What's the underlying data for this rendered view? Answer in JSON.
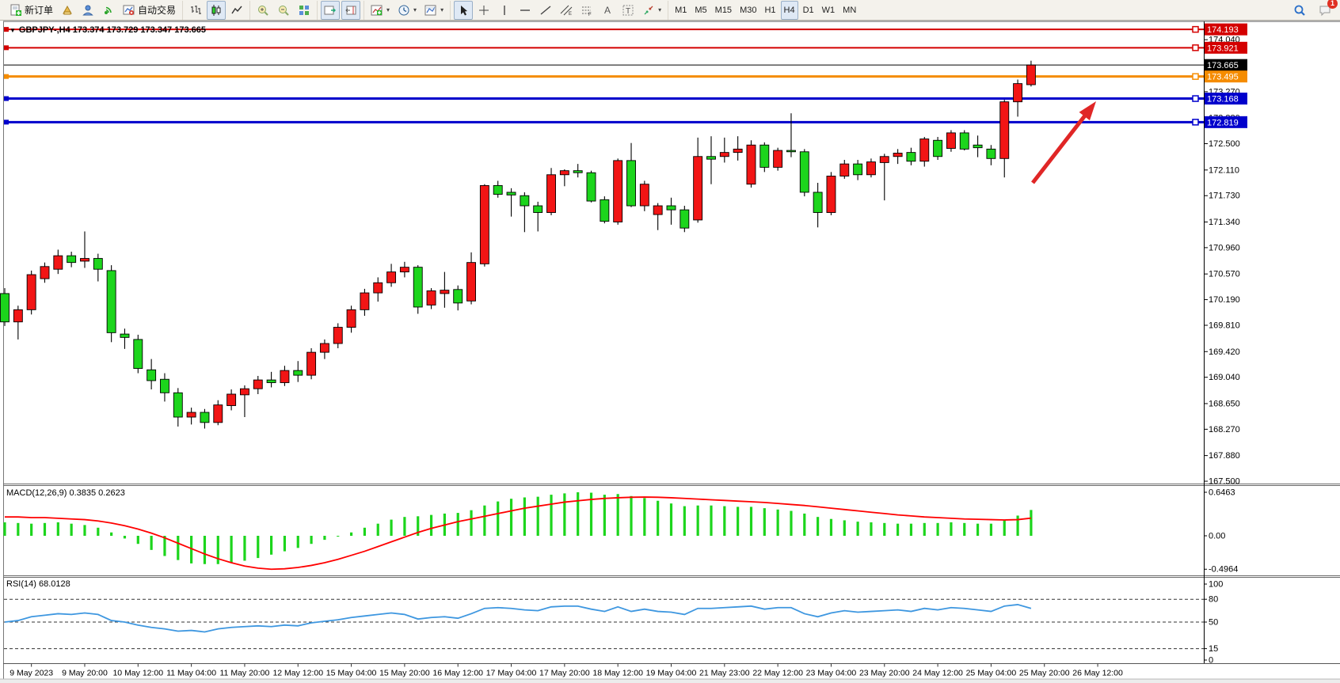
{
  "toolbar": {
    "groups": [
      {
        "items": [
          {
            "name": "new-order",
            "icon": "new-order",
            "label": "新订单",
            "pressed": false,
            "dropdown": false
          },
          {
            "name": "market",
            "icon": "market",
            "label": "",
            "pressed": false,
            "dropdown": false
          },
          {
            "name": "community",
            "icon": "community",
            "label": "",
            "pressed": false,
            "dropdown": false
          },
          {
            "name": "signals",
            "icon": "signals",
            "label": "",
            "pressed": false,
            "dropdown": false
          },
          {
            "name": "autotrading",
            "icon": "autotrading",
            "label": "自动交易",
            "pressed": false,
            "dropdown": false
          }
        ]
      },
      {
        "items": [
          {
            "name": "bar-chart",
            "icon": "bar-chart",
            "label": "",
            "pressed": false,
            "dropdown": false
          },
          {
            "name": "candlesticks",
            "icon": "candles",
            "label": "",
            "pressed": true,
            "dropdown": false
          },
          {
            "name": "line-chart",
            "icon": "line-chart",
            "label": "",
            "pressed": false,
            "dropdown": false
          }
        ]
      },
      {
        "items": [
          {
            "name": "zoom-in",
            "icon": "zoom-in",
            "label": "",
            "pressed": false,
            "dropdown": false
          },
          {
            "name": "zoom-out",
            "icon": "zoom-out",
            "label": "",
            "pressed": false,
            "dropdown": false
          },
          {
            "name": "tile-windows",
            "icon": "tile",
            "label": "",
            "pressed": false,
            "dropdown": false
          }
        ]
      },
      {
        "items": [
          {
            "name": "auto-scroll",
            "icon": "auto-scroll",
            "label": "",
            "pressed": true,
            "dropdown": false
          },
          {
            "name": "chart-shift",
            "icon": "chart-shift",
            "label": "",
            "pressed": true,
            "dropdown": false
          }
        ]
      },
      {
        "items": [
          {
            "name": "indicators",
            "icon": "indicators",
            "label": "",
            "pressed": false,
            "dropdown": true
          },
          {
            "name": "periods",
            "icon": "periods",
            "label": "",
            "pressed": false,
            "dropdown": true
          },
          {
            "name": "templates",
            "icon": "templates",
            "label": "",
            "pressed": false,
            "dropdown": true
          }
        ]
      },
      {
        "items": [
          {
            "name": "cursor",
            "icon": "cursor",
            "label": "",
            "pressed": true,
            "dropdown": false
          },
          {
            "name": "crosshair",
            "icon": "crosshair",
            "label": "",
            "pressed": false,
            "dropdown": false
          },
          {
            "name": "vertical-line",
            "icon": "vline",
            "label": "",
            "pressed": false,
            "dropdown": false
          },
          {
            "name": "horizontal-line",
            "icon": "hline",
            "label": "",
            "pressed": false,
            "dropdown": false
          },
          {
            "name": "trendline",
            "icon": "tline",
            "label": "",
            "pressed": false,
            "dropdown": false
          },
          {
            "name": "equidistant-channel",
            "icon": "channel",
            "label": "",
            "pressed": false,
            "dropdown": false
          },
          {
            "name": "fibonacci",
            "icon": "fibo",
            "label": "",
            "pressed": false,
            "dropdown": false
          },
          {
            "name": "text",
            "icon": "textA",
            "label": "",
            "pressed": false,
            "dropdown": false
          },
          {
            "name": "text-label",
            "icon": "textT",
            "label": "",
            "pressed": false,
            "dropdown": false
          },
          {
            "name": "arrows-tool",
            "icon": "arrows",
            "label": "",
            "pressed": false,
            "dropdown": true
          }
        ]
      },
      {
        "items": [
          {
            "name": "tf-m1",
            "label": "M1",
            "tf": true,
            "pressed": false
          },
          {
            "name": "tf-m5",
            "label": "M5",
            "tf": true,
            "pressed": false
          },
          {
            "name": "tf-m15",
            "label": "M15",
            "tf": true,
            "pressed": false
          },
          {
            "name": "tf-m30",
            "label": "M30",
            "tf": true,
            "pressed": false
          },
          {
            "name": "tf-h1",
            "label": "H1",
            "tf": true,
            "pressed": false
          },
          {
            "name": "tf-h4",
            "label": "H4",
            "tf": true,
            "pressed": true
          },
          {
            "name": "tf-d1",
            "label": "D1",
            "tf": true,
            "pressed": false
          },
          {
            "name": "tf-w1",
            "label": "W1",
            "tf": true,
            "pressed": false
          },
          {
            "name": "tf-mn",
            "label": "MN",
            "tf": true,
            "pressed": false
          }
        ]
      }
    ],
    "notification_count": "1"
  },
  "chart": {
    "title": "GBPJPY-,H4  173.374 173.729 173.347 173.665",
    "symbol": "GBPJPY-",
    "period": "H4",
    "ohlc_line": {
      "open": "173.374",
      "high": "173.729",
      "low": "173.347",
      "close": "173.665"
    }
  },
  "price_axis": {
    "ticks": [
      "174.040",
      "173.650",
      "173.270",
      "172.880",
      "172.500",
      "172.110",
      "171.730",
      "171.340",
      "170.960",
      "170.570",
      "170.190",
      "169.810",
      "169.420",
      "169.040",
      "168.650",
      "168.270",
      "167.880",
      "167.500"
    ],
    "labels": [
      {
        "text": "174.193",
        "color": "#d40000"
      },
      {
        "text": "173.921",
        "color": "#d40000"
      },
      {
        "text": "173.665",
        "color": "#000000"
      },
      {
        "text": "173.495",
        "color": "#f58c00"
      },
      {
        "text": "173.168",
        "color": "#0000cc"
      },
      {
        "text": "172.819",
        "color": "#0000cc"
      }
    ]
  },
  "levels": [
    {
      "value": 174.193,
      "color": "#d40000",
      "width": 2,
      "handles": true
    },
    {
      "value": 173.921,
      "color": "#d40000",
      "width": 2,
      "handles": true
    },
    {
      "value": 173.665,
      "color": "#000000",
      "width": 1,
      "handles": false
    },
    {
      "value": 173.495,
      "color": "#f58c00",
      "width": 3,
      "handles": true
    },
    {
      "value": 173.168,
      "color": "#0000cc",
      "width": 3,
      "handles": true
    },
    {
      "value": 172.819,
      "color": "#0000cc",
      "width": 3,
      "handles": true
    }
  ],
  "time_axis": {
    "labels": [
      "9 May 2023",
      "9 May 20:00",
      "10 May 12:00",
      "11 May 04:00",
      "11 May 20:00",
      "12 May 12:00",
      "15 May 04:00",
      "15 May 20:00",
      "16 May 12:00",
      "17 May 04:00",
      "17 May 20:00",
      "18 May 12:00",
      "19 May 04:00",
      "21 May 23:00",
      "22 May 12:00",
      "23 May 04:00",
      "23 May 20:00",
      "24 May 12:00",
      "25 May 04:00",
      "25 May 20:00",
      "26 May 12:00"
    ]
  },
  "macd": {
    "title": "MACD(12,26,9) 0.3835 0.2623",
    "axis": [
      "0.6463",
      "0.00",
      "-0.4964"
    ],
    "hist_color": "#1cd51c",
    "signal_color": "#ff0000"
  },
  "rsi": {
    "title": "RSI(14) 68.0128",
    "axis": [
      "100",
      "80",
      "50",
      "15",
      "0"
    ],
    "level_lines": [
      80,
      50,
      15
    ],
    "line_color": "#3e97e0"
  },
  "arrow": {
    "from": [
      1304,
      231
    ],
    "to": [
      1384,
      128
    ],
    "color": "#e02626"
  },
  "colors": {
    "bull": "#f21515",
    "bear": "#1cd51c",
    "wick": "#000000",
    "axis_text": "#000000"
  },
  "chart_data": {
    "type": "candlestick",
    "symbol": "GBPJPY",
    "period": "H4",
    "ylim": [
      167.5,
      174.3
    ],
    "note": "red = bullish, green = bearish (CN color convention)",
    "candles": [
      [
        170.28,
        170.36,
        169.8,
        169.86
      ],
      [
        169.86,
        170.1,
        169.6,
        170.04
      ],
      [
        170.04,
        170.62,
        169.97,
        170.56
      ],
      [
        170.5,
        170.74,
        170.44,
        170.68
      ],
      [
        170.64,
        170.93,
        170.57,
        170.84
      ],
      [
        170.84,
        170.9,
        170.67,
        170.74
      ],
      [
        170.76,
        171.2,
        170.66,
        170.8
      ],
      [
        170.8,
        170.87,
        170.46,
        170.64
      ],
      [
        170.62,
        170.7,
        169.56,
        169.7
      ],
      [
        169.68,
        169.76,
        169.46,
        169.63
      ],
      [
        169.6,
        169.67,
        169.1,
        169.17
      ],
      [
        169.15,
        169.31,
        168.86,
        168.99
      ],
      [
        169.01,
        169.1,
        168.68,
        168.81
      ],
      [
        168.81,
        168.88,
        168.31,
        168.45
      ],
      [
        168.45,
        168.59,
        168.34,
        168.52
      ],
      [
        168.52,
        168.57,
        168.28,
        168.37
      ],
      [
        168.37,
        168.7,
        168.33,
        168.63
      ],
      [
        168.62,
        168.86,
        168.55,
        168.79
      ],
      [
        168.78,
        168.92,
        168.45,
        168.87
      ],
      [
        168.87,
        169.06,
        168.79,
        169.0
      ],
      [
        169.0,
        169.12,
        168.89,
        168.96
      ],
      [
        168.96,
        169.21,
        168.91,
        169.14
      ],
      [
        169.14,
        169.28,
        168.97,
        169.07
      ],
      [
        169.07,
        169.47,
        169.01,
        169.41
      ],
      [
        169.41,
        169.6,
        169.31,
        169.54
      ],
      [
        169.54,
        169.84,
        169.47,
        169.78
      ],
      [
        169.78,
        170.1,
        169.7,
        170.04
      ],
      [
        170.04,
        170.35,
        169.95,
        170.29
      ],
      [
        170.29,
        170.52,
        170.16,
        170.44
      ],
      [
        170.44,
        170.72,
        170.38,
        170.6
      ],
      [
        170.6,
        170.75,
        170.52,
        170.67
      ],
      [
        170.67,
        170.7,
        169.98,
        170.08
      ],
      [
        170.11,
        170.36,
        170.05,
        170.32
      ],
      [
        170.28,
        170.6,
        170.07,
        170.33
      ],
      [
        170.34,
        170.4,
        170.03,
        170.14
      ],
      [
        170.17,
        170.89,
        170.12,
        170.74
      ],
      [
        170.72,
        171.9,
        170.68,
        171.88
      ],
      [
        171.88,
        171.95,
        171.7,
        171.75
      ],
      [
        171.78,
        171.84,
        171.42,
        171.74
      ],
      [
        171.73,
        171.78,
        171.19,
        171.58
      ],
      [
        171.58,
        171.64,
        171.2,
        171.48
      ],
      [
        171.48,
        172.14,
        171.44,
        172.04
      ],
      [
        172.04,
        172.12,
        171.87,
        172.1
      ],
      [
        172.1,
        172.2,
        172.0,
        172.07
      ],
      [
        172.07,
        172.1,
        171.63,
        171.65
      ],
      [
        171.67,
        171.72,
        171.32,
        171.35
      ],
      [
        171.34,
        172.28,
        171.3,
        172.25
      ],
      [
        172.25,
        172.51,
        171.56,
        171.58
      ],
      [
        171.58,
        171.95,
        171.5,
        171.9
      ],
      [
        171.45,
        171.62,
        171.22,
        171.58
      ],
      [
        171.58,
        171.7,
        171.3,
        171.52
      ],
      [
        171.52,
        171.58,
        171.19,
        171.25
      ],
      [
        171.37,
        172.59,
        171.33,
        172.31
      ],
      [
        172.31,
        172.61,
        171.9,
        172.27
      ],
      [
        172.31,
        172.59,
        172.22,
        172.37
      ],
      [
        172.37,
        172.61,
        172.25,
        172.42
      ],
      [
        171.9,
        172.55,
        171.85,
        172.48
      ],
      [
        172.48,
        172.52,
        172.08,
        172.15
      ],
      [
        172.15,
        172.44,
        172.1,
        172.4
      ],
      [
        172.4,
        172.95,
        172.3,
        172.38
      ],
      [
        172.38,
        172.42,
        171.72,
        171.78
      ],
      [
        171.78,
        171.92,
        171.26,
        171.48
      ],
      [
        171.48,
        172.08,
        171.44,
        172.02
      ],
      [
        172.02,
        172.26,
        171.98,
        172.2
      ],
      [
        172.2,
        172.26,
        171.96,
        172.04
      ],
      [
        172.04,
        172.28,
        172.0,
        172.23
      ],
      [
        172.22,
        172.35,
        171.66,
        172.31
      ],
      [
        172.31,
        172.42,
        172.2,
        172.36
      ],
      [
        172.37,
        172.44,
        172.18,
        172.24
      ],
      [
        172.24,
        172.6,
        172.16,
        172.57
      ],
      [
        172.55,
        172.6,
        172.26,
        172.31
      ],
      [
        172.43,
        172.7,
        172.38,
        172.66
      ],
      [
        172.66,
        172.7,
        172.4,
        172.42
      ],
      [
        172.48,
        172.62,
        172.3,
        172.44
      ],
      [
        172.42,
        172.48,
        172.18,
        172.28
      ],
      [
        172.28,
        173.15,
        172.0,
        173.12
      ],
      [
        173.12,
        173.45,
        172.9,
        173.39
      ],
      [
        173.374,
        173.729,
        173.347,
        173.665
      ]
    ],
    "macd_hist": [
      0.2,
      0.19,
      0.18,
      0.19,
      0.2,
      0.18,
      0.16,
      0.12,
      0.05,
      -0.04,
      -0.12,
      -0.21,
      -0.3,
      -0.36,
      -0.41,
      -0.42,
      -0.42,
      -0.4,
      -0.37,
      -0.33,
      -0.28,
      -0.23,
      -0.18,
      -0.12,
      -0.06,
      -0.01,
      0.05,
      0.12,
      0.18,
      0.24,
      0.28,
      0.29,
      0.31,
      0.33,
      0.34,
      0.38,
      0.45,
      0.51,
      0.55,
      0.57,
      0.58,
      0.61,
      0.63,
      0.6463,
      0.64,
      0.61,
      0.62,
      0.59,
      0.56,
      0.52,
      0.48,
      0.44,
      0.45,
      0.45,
      0.44,
      0.43,
      0.43,
      0.41,
      0.39,
      0.37,
      0.33,
      0.28,
      0.25,
      0.23,
      0.21,
      0.2,
      0.19,
      0.18,
      0.18,
      0.19,
      0.19,
      0.2,
      0.19,
      0.18,
      0.18,
      0.24,
      0.3,
      0.3835
    ],
    "macd_signal": [
      0.28,
      0.28,
      0.27,
      0.27,
      0.26,
      0.25,
      0.24,
      0.22,
      0.19,
      0.15,
      0.1,
      0.04,
      -0.03,
      -0.11,
      -0.19,
      -0.27,
      -0.34,
      -0.4,
      -0.45,
      -0.48,
      -0.4964,
      -0.49,
      -0.47,
      -0.44,
      -0.4,
      -0.35,
      -0.29,
      -0.23,
      -0.16,
      -0.09,
      -0.02,
      0.05,
      0.11,
      0.16,
      0.21,
      0.25,
      0.29,
      0.33,
      0.37,
      0.41,
      0.44,
      0.47,
      0.5,
      0.52,
      0.54,
      0.555,
      0.565,
      0.572,
      0.575,
      0.572,
      0.565,
      0.555,
      0.545,
      0.535,
      0.525,
      0.515,
      0.505,
      0.495,
      0.48,
      0.465,
      0.45,
      0.43,
      0.41,
      0.39,
      0.37,
      0.35,
      0.33,
      0.31,
      0.295,
      0.28,
      0.27,
      0.26,
      0.25,
      0.245,
      0.24,
      0.235,
      0.24,
      0.2623
    ],
    "rsi_values": [
      50,
      52,
      57,
      59,
      61,
      60,
      62,
      60,
      52,
      50,
      46,
      43,
      41,
      38,
      39,
      37,
      41,
      43,
      44,
      45,
      44,
      46,
      45,
      49,
      51,
      53,
      56,
      58,
      60,
      62,
      60,
      54,
      56,
      57,
      55,
      61,
      68,
      69,
      68,
      66,
      65,
      70,
      71,
      71,
      67,
      64,
      70,
      64,
      67,
      64,
      63,
      60,
      68,
      68,
      69,
      70,
      71,
      67,
      69,
      69,
      61,
      57,
      62,
      65,
      63,
      64,
      65,
      66,
      64,
      68,
      66,
      69,
      68,
      66,
      64,
      71,
      73,
      68.0128
    ]
  }
}
